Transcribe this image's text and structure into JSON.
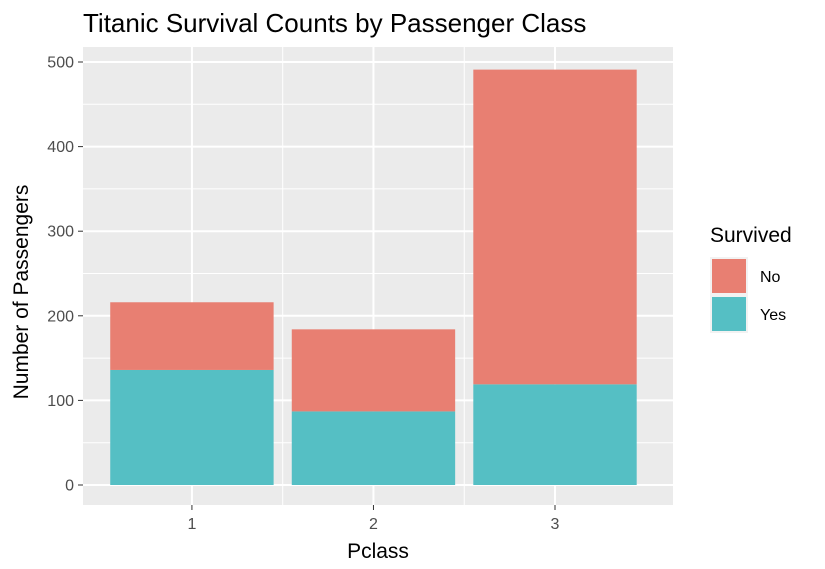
{
  "chart_data": {
    "type": "bar",
    "stacked": true,
    "title": "Titanic Survival Counts by Passenger Class",
    "xlabel": "Pclass",
    "ylabel": "Number of Passengers",
    "categories": [
      "1",
      "2",
      "3"
    ],
    "series": [
      {
        "name": "Yes",
        "values": [
          136,
          87,
          119
        ],
        "color": "#55BFC4"
      },
      {
        "name": "No",
        "values": [
          80,
          97,
          372
        ],
        "color": "#E87F72"
      }
    ],
    "ylim": [
      0,
      515
    ],
    "yticks": [
      0,
      100,
      200,
      300,
      400,
      500
    ],
    "grid": true,
    "legend": {
      "title": "Survived",
      "placement": "right",
      "entries": [
        {
          "label": "No",
          "color": "#E87F72"
        },
        {
          "label": "Yes",
          "color": "#55BFC4"
        }
      ]
    },
    "colors": {
      "panel_background": "#EBEBEB",
      "grid": "#FFFFFF",
      "tick_text": "#4D4D4D"
    }
  }
}
